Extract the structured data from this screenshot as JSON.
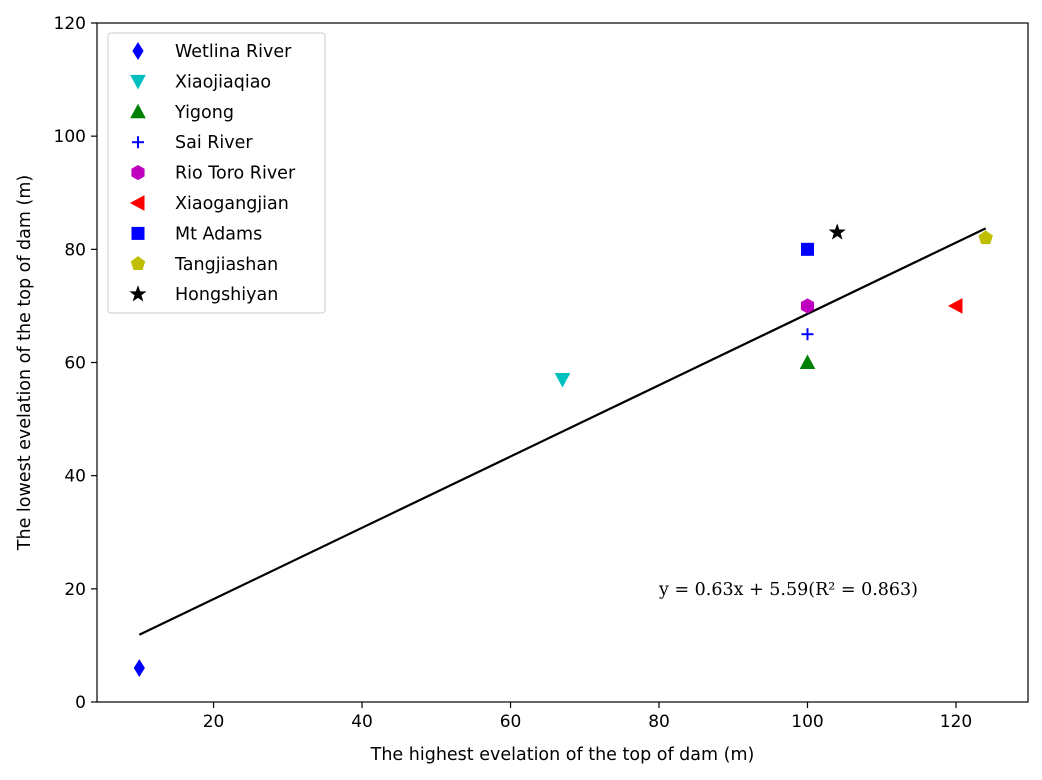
{
  "chart_data": {
    "type": "scatter",
    "title": "",
    "xlabel": "The highest evelation of the top of dam (m)",
    "ylabel": "The lowest evelation of the top of dam (m)",
    "xlim": [
      4.3,
      129.7
    ],
    "ylim": [
      0,
      120
    ],
    "xticks": [
      20,
      40,
      60,
      80,
      100,
      120
    ],
    "yticks": [
      0,
      20,
      40,
      60,
      80,
      100,
      120
    ],
    "grid": false,
    "legend_position": "top-left",
    "series": [
      {
        "name": "Wetlina River",
        "marker": "thin-diamond",
        "color": "#0000ff",
        "x": [
          10
        ],
        "y": [
          6
        ]
      },
      {
        "name": "Xiaojiaqiao",
        "marker": "triangle-down",
        "color": "#00bfbf",
        "x": [
          67
        ],
        "y": [
          57
        ]
      },
      {
        "name": "Yigong",
        "marker": "triangle-up",
        "color": "#008000",
        "x": [
          100
        ],
        "y": [
          60
        ]
      },
      {
        "name": "Sai River",
        "marker": "plus",
        "color": "#0000ff",
        "x": [
          100
        ],
        "y": [
          65
        ]
      },
      {
        "name": "Rio Toro River",
        "marker": "hexagon",
        "color": "#bf00bf",
        "x": [
          100
        ],
        "y": [
          70
        ]
      },
      {
        "name": "Xiaogangjian",
        "marker": "triangle-left",
        "color": "#ff0000",
        "x": [
          120
        ],
        "y": [
          70
        ]
      },
      {
        "name": "Mt Adams",
        "marker": "square",
        "color": "#0000ff",
        "x": [
          100
        ],
        "y": [
          80
        ]
      },
      {
        "name": "Tangjiashan",
        "marker": "pentagon",
        "color": "#bfbf00",
        "x": [
          124
        ],
        "y": [
          82
        ]
      },
      {
        "name": "Hongshiyan",
        "marker": "star",
        "color": "#000000",
        "x": [
          104
        ],
        "y": [
          83
        ]
      }
    ],
    "fit_line": {
      "slope": 0.63,
      "intercept": 5.59,
      "x_range": [
        10,
        124
      ],
      "color": "#000000"
    },
    "annotation": {
      "text": "y = 0.63x + 5.59(R² = 0.863)",
      "x": 80,
      "y": 20
    }
  }
}
